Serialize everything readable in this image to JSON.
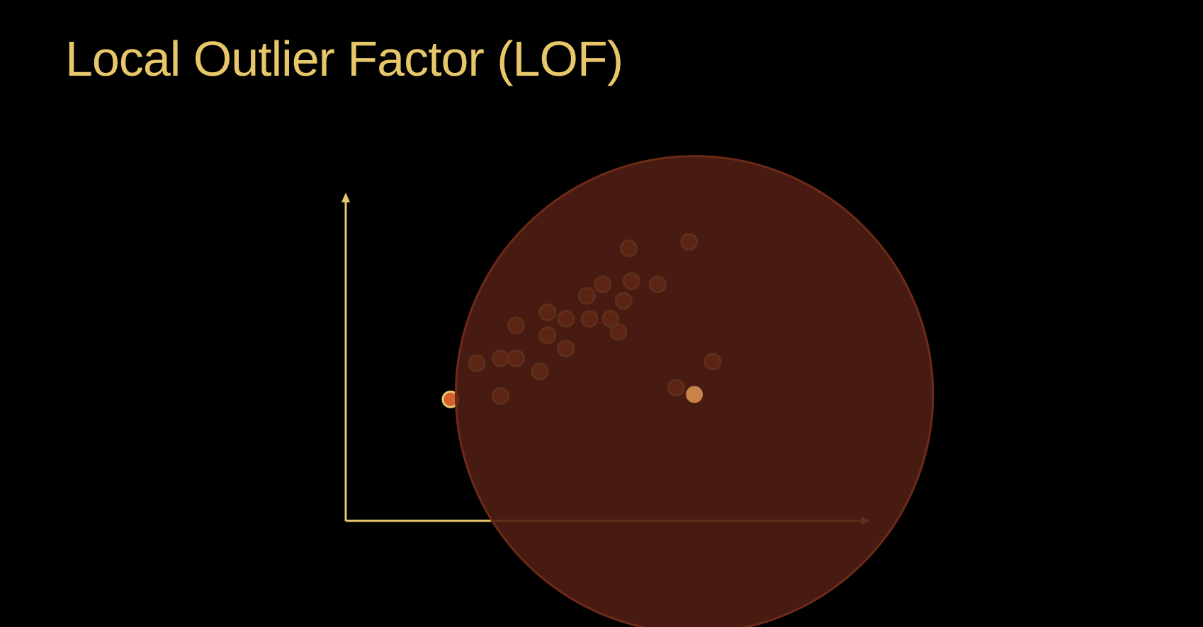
{
  "slide": {
    "title": "Local Outlier Factor (LOF)"
  },
  "colors": {
    "background": "#000000",
    "accent": "#E7C76A",
    "point_fill": "#D4622F",
    "point_outline": "#E7C76A",
    "neighborhood_fill": "#4F1E13",
    "neighborhood_outline": "#6E2A17",
    "highlight_point": "#C8834A"
  },
  "chart_data": {
    "type": "scatter",
    "title": "",
    "xlabel": "",
    "ylabel": "",
    "xlim": [
      0,
      100
    ],
    "ylim": [
      0,
      100
    ],
    "grid": false,
    "legend": "none",
    "axes": "arrows-only",
    "series": [
      {
        "points": [
          [
            20,
            37
          ],
          [
            29.5,
            38
          ],
          [
            25,
            48
          ],
          [
            29.5,
            49.5
          ],
          [
            32.5,
            49.5
          ],
          [
            32.5,
            59.5
          ],
          [
            37,
            45.5
          ],
          [
            38.5,
            56.5
          ],
          [
            38.5,
            63.5
          ],
          [
            42,
            52.5
          ],
          [
            42,
            61.5
          ],
          [
            46,
            68.5
          ],
          [
            46.5,
            61.5
          ],
          [
            50.5,
            61.5
          ],
          [
            49,
            72
          ],
          [
            52,
            57.5
          ],
          [
            53,
            67
          ],
          [
            54,
            83
          ],
          [
            54.5,
            73
          ],
          [
            59.5,
            72
          ],
          [
            65.5,
            85
          ],
          [
            63,
            40.5
          ],
          [
            70,
            48.5
          ]
        ]
      }
    ],
    "neighborhood": {
      "center": [
        66.5,
        38.5
      ],
      "radius_x": 45.5
    },
    "query_point": [
      66.5,
      38.5
    ]
  }
}
